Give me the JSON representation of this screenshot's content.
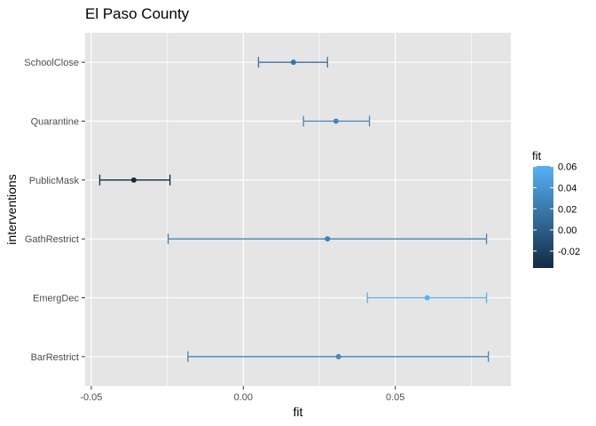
{
  "chart_data": {
    "type": "errorbar-dot",
    "title": "El Paso County",
    "xlabel": "fit",
    "ylabel": "interventions",
    "xlim": [
      -0.052,
      0.088
    ],
    "x_ticks": [
      -0.05,
      0.0,
      0.05
    ],
    "x_tick_labels": [
      "-0.05",
      "0.00",
      "0.05"
    ],
    "grid": true,
    "panel_background": "#e5e5e5",
    "grid_color": "#ffffff",
    "categories": [
      "SchoolClose",
      "Quarantine",
      "PublicMask",
      "GathRestrict",
      "EmergDec",
      "BarRestrict"
    ],
    "points": [
      {
        "label": "SchoolClose",
        "fit": 0.0165,
        "lower": 0.005,
        "upper": 0.0277
      },
      {
        "label": "Quarantine",
        "fit": 0.0305,
        "lower": 0.0198,
        "upper": 0.0415
      },
      {
        "label": "PublicMask",
        "fit": -0.036,
        "lower": -0.0472,
        "upper": -0.0241
      },
      {
        "label": "GathRestrict",
        "fit": 0.0277,
        "lower": -0.0247,
        "upper": 0.08
      },
      {
        "label": "EmergDec",
        "fit": 0.0605,
        "lower": 0.0408,
        "upper": 0.08
      },
      {
        "label": "BarRestrict",
        "fit": 0.0313,
        "lower": -0.0182,
        "upper": 0.0806
      }
    ],
    "legend": {
      "title": "fit",
      "placement": "right",
      "range": [
        -0.036,
        0.0605
      ],
      "tick_values": [
        -0.02,
        0.0,
        0.02,
        0.04,
        0.06
      ],
      "tick_labels": [
        "-0.02",
        "0.00",
        "0.02",
        "0.04",
        "0.06"
      ],
      "color_low": "#132B43",
      "color_high": "#56B1F7"
    }
  }
}
